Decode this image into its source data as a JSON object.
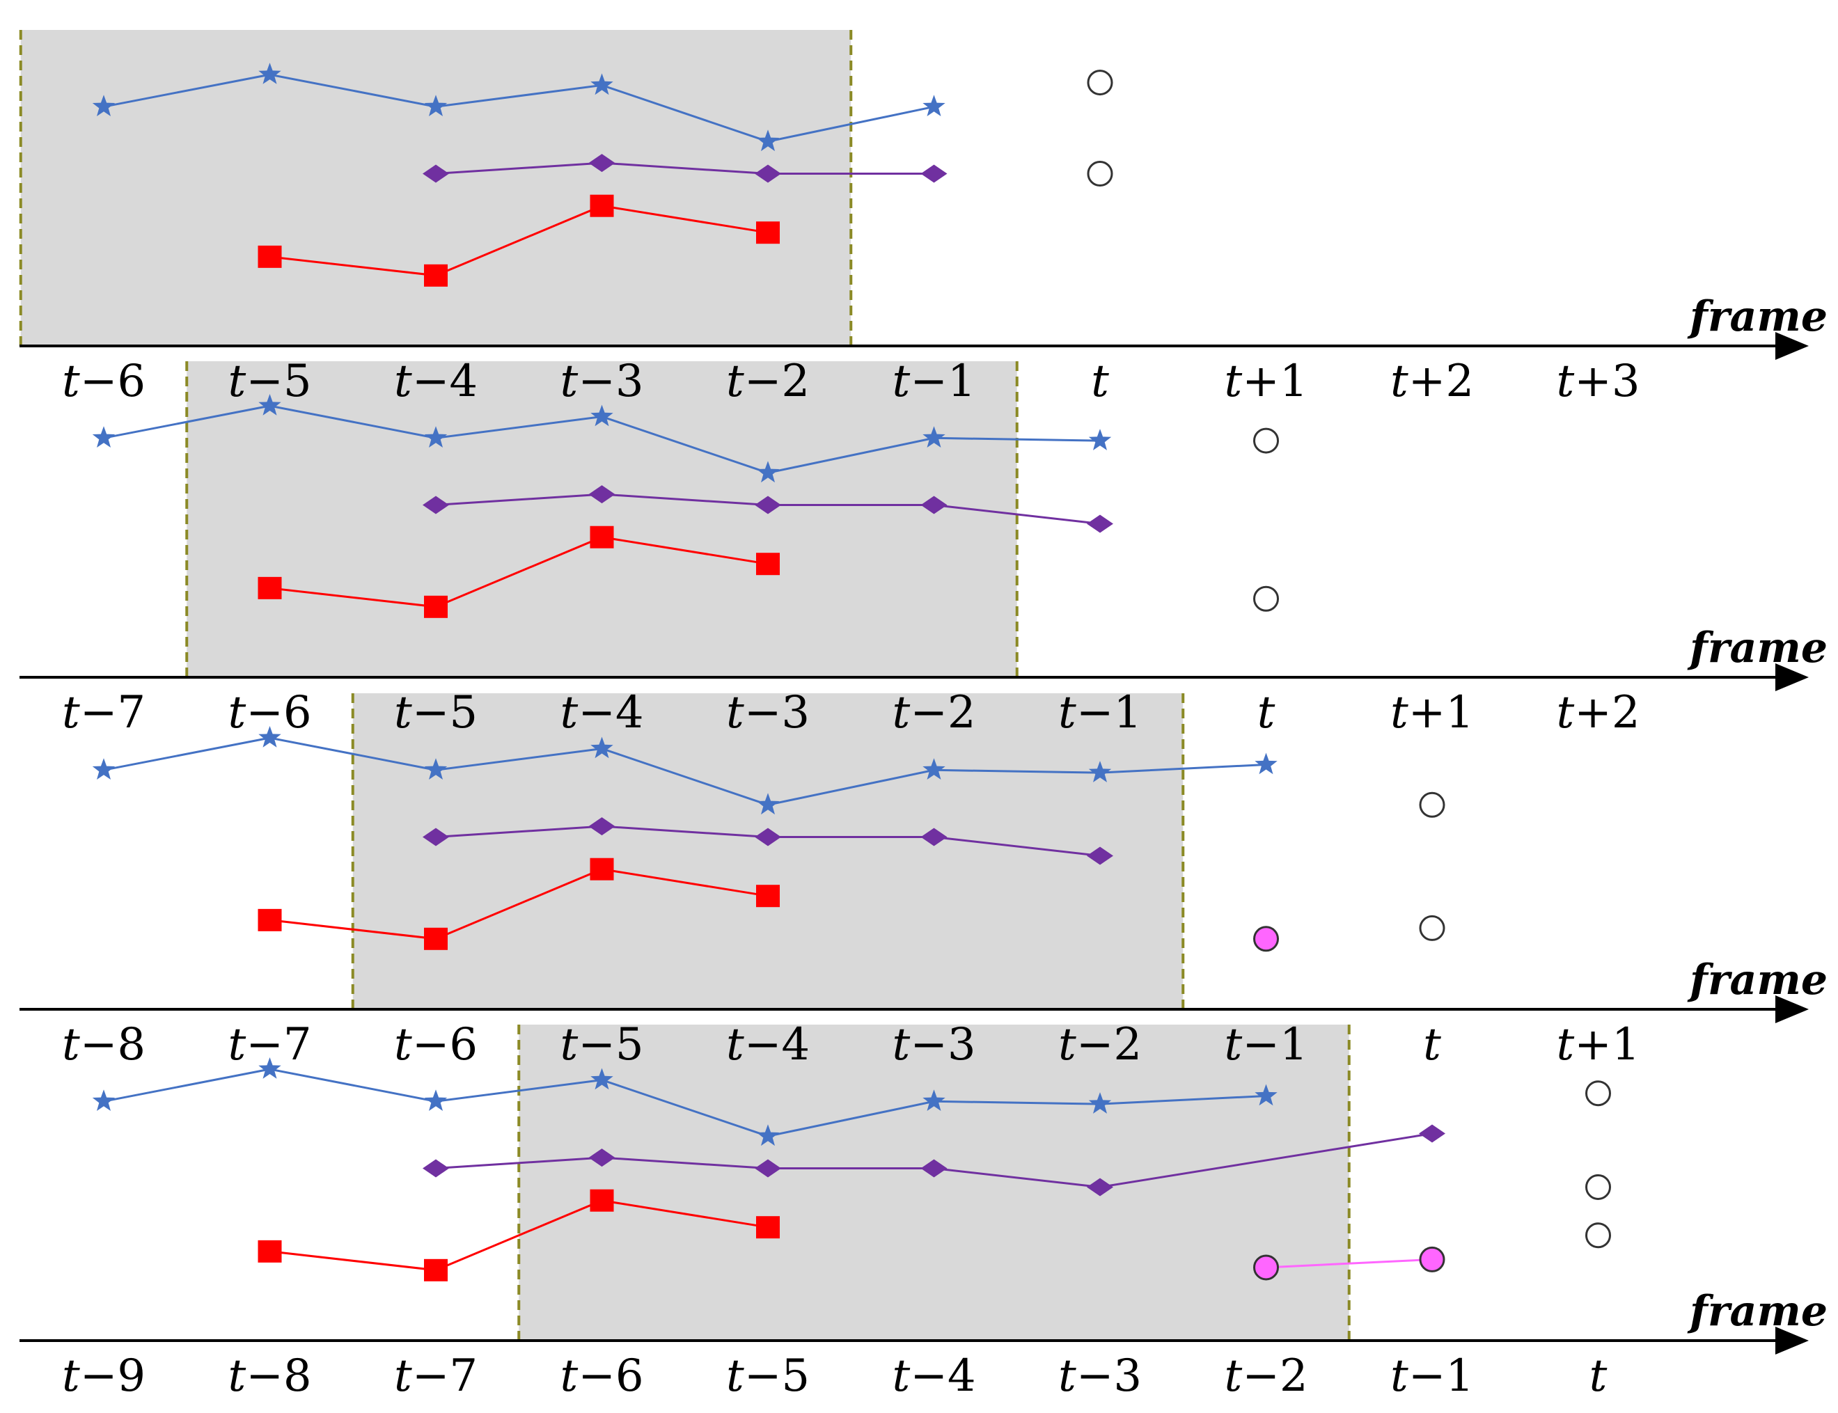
{
  "axis_label": "frame",
  "colors": {
    "window_fill": "#d9d9d9",
    "window_edge": "#8b8a26",
    "blue_track": "#4472c4",
    "purple_track": "#7030a0",
    "red_track": "#ff0000",
    "pink_track": "#ff66ff",
    "circle_outline": "#333333",
    "circle_filled": "#ff66ff"
  },
  "panels": [
    {
      "name": "panel-1",
      "tick_labels": [
        "t−6",
        "t−5",
        "t−4",
        "t−3",
        "t−2",
        "t−1",
        "t",
        "t+1",
        "t+2",
        "t+3"
      ],
      "window": {
        "start_index": -0.5,
        "end_index": 4.5
      },
      "series": [
        {
          "name": "blue-star-track",
          "marker": "star",
          "color": "blue",
          "points": [
            [
              -4,
              0.75
            ],
            [
              -3,
              0.87
            ],
            [
              -2,
              0.75
            ],
            [
              -1,
              0.83
            ],
            [
              0,
              0.62
            ],
            [
              1,
              0.75
            ]
          ]
        },
        {
          "name": "purple-diamond-track",
          "marker": "diamond",
          "color": "purple",
          "points": [
            [
              -2,
              0.5
            ],
            [
              -1,
              0.54
            ],
            [
              0,
              0.5
            ],
            [
              1,
              0.5
            ]
          ]
        },
        {
          "name": "red-square-track",
          "marker": "square",
          "color": "red",
          "points": [
            [
              -3,
              0.19
            ],
            [
              -2,
              0.12
            ],
            [
              -1,
              0.38
            ],
            [
              0,
              0.28
            ]
          ]
        },
        {
          "name": "open-circles",
          "marker": "circle-open",
          "color": "black",
          "points": [
            [
              2,
              0.84
            ],
            [
              2,
              0.5
            ]
          ]
        }
      ]
    },
    {
      "name": "panel-2",
      "tick_labels": [
        "t−7",
        "t−6",
        "t−5",
        "t−4",
        "t−3",
        "t−2",
        "t−1",
        "t",
        "t+1",
        "t+2"
      ],
      "window": {
        "start_index": 0.5,
        "end_index": 5.5
      },
      "series": [
        {
          "name": "blue-star-track",
          "marker": "star",
          "color": "blue",
          "points": [
            [
              -4,
              0.75
            ],
            [
              -3,
              0.87
            ],
            [
              -2,
              0.75
            ],
            [
              -1,
              0.83
            ],
            [
              0,
              0.62
            ],
            [
              1,
              0.75
            ],
            [
              2,
              0.74
            ]
          ]
        },
        {
          "name": "purple-diamond-track",
          "marker": "diamond",
          "color": "purple",
          "points": [
            [
              -2,
              0.5
            ],
            [
              -1,
              0.54
            ],
            [
              0,
              0.5
            ],
            [
              1,
              0.5
            ],
            [
              2,
              0.43
            ]
          ]
        },
        {
          "name": "red-square-track",
          "marker": "square",
          "color": "red",
          "points": [
            [
              -3,
              0.19
            ],
            [
              -2,
              0.12
            ],
            [
              -1,
              0.38
            ],
            [
              0,
              0.28
            ]
          ]
        },
        {
          "name": "open-circles",
          "marker": "circle-open",
          "color": "black",
          "points": [
            [
              3,
              0.74
            ],
            [
              3,
              0.15
            ]
          ]
        }
      ]
    },
    {
      "name": "panel-3",
      "tick_labels": [
        "t−8",
        "t−7",
        "t−6",
        "t−5",
        "t−4",
        "t−3",
        "t−2",
        "t−1",
        "t",
        "t+1"
      ],
      "window": {
        "start_index": 1.5,
        "end_index": 6.5
      },
      "series": [
        {
          "name": "blue-star-track",
          "marker": "star",
          "color": "blue",
          "points": [
            [
              -4,
              0.75
            ],
            [
              -3,
              0.87
            ],
            [
              -2,
              0.75
            ],
            [
              -1,
              0.83
            ],
            [
              0,
              0.62
            ],
            [
              1,
              0.75
            ],
            [
              2,
              0.74
            ],
            [
              3,
              0.77
            ]
          ]
        },
        {
          "name": "purple-diamond-track",
          "marker": "diamond",
          "color": "purple",
          "points": [
            [
              -2,
              0.5
            ],
            [
              -1,
              0.54
            ],
            [
              0,
              0.5
            ],
            [
              1,
              0.5
            ],
            [
              2,
              0.43
            ]
          ]
        },
        {
          "name": "red-square-track",
          "marker": "square",
          "color": "red",
          "points": [
            [
              -3,
              0.19
            ],
            [
              -2,
              0.12
            ],
            [
              -1,
              0.38
            ],
            [
              0,
              0.28
            ]
          ]
        },
        {
          "name": "filled-circle",
          "marker": "circle-filled",
          "color": "pink",
          "points": [
            [
              3,
              0.12
            ]
          ]
        },
        {
          "name": "open-circles",
          "marker": "circle-open",
          "color": "black",
          "points": [
            [
              4,
              0.62
            ],
            [
              4,
              0.16
            ]
          ]
        }
      ]
    },
    {
      "name": "panel-4",
      "tick_labels": [
        "t−9",
        "t−8",
        "t−7",
        "t−6",
        "t−5",
        "t−4",
        "t−3",
        "t−2",
        "t−1",
        "t"
      ],
      "window": {
        "start_index": 2.5,
        "end_index": 7.5
      },
      "series": [
        {
          "name": "blue-star-track",
          "marker": "star",
          "color": "blue",
          "points": [
            [
              -4,
              0.75
            ],
            [
              -3,
              0.87
            ],
            [
              -2,
              0.75
            ],
            [
              -1,
              0.83
            ],
            [
              0,
              0.62
            ],
            [
              1,
              0.75
            ],
            [
              2,
              0.74
            ],
            [
              3,
              0.77
            ]
          ]
        },
        {
          "name": "purple-diamond-track",
          "marker": "diamond",
          "color": "purple",
          "points": [
            [
              -2,
              0.5
            ],
            [
              -1,
              0.54
            ],
            [
              0,
              0.5
            ],
            [
              1,
              0.5
            ],
            [
              2,
              0.43
            ],
            [
              4,
              0.63
            ]
          ]
        },
        {
          "name": "red-square-track",
          "marker": "square",
          "color": "red",
          "points": [
            [
              -3,
              0.19
            ],
            [
              -2,
              0.12
            ],
            [
              -1,
              0.38
            ],
            [
              0,
              0.28
            ]
          ]
        },
        {
          "name": "pink-circle-track",
          "marker": "circle-filled",
          "color": "pink",
          "points": [
            [
              3,
              0.13
            ],
            [
              4,
              0.16
            ]
          ]
        },
        {
          "name": "open-circles",
          "marker": "circle-open",
          "color": "black",
          "points": [
            [
              5,
              0.78
            ],
            [
              5,
              0.43
            ],
            [
              5,
              0.25
            ]
          ]
        }
      ]
    }
  ]
}
